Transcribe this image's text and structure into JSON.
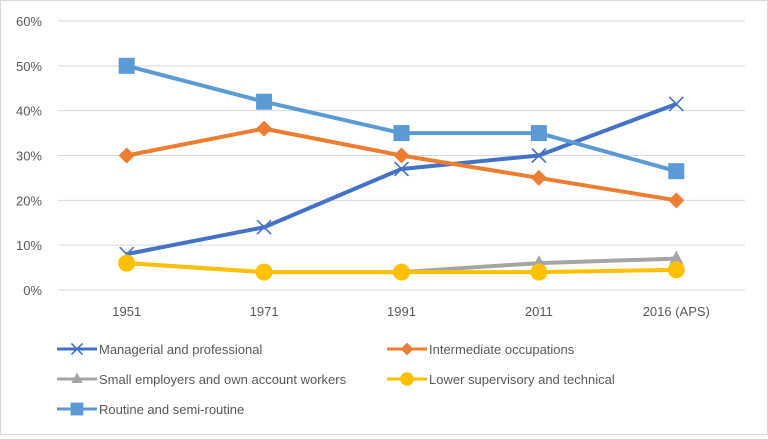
{
  "chart_data": {
    "type": "line",
    "title": "",
    "xlabel": "",
    "ylabel": "",
    "categories": [
      "1951",
      "1971",
      "1991",
      "2011",
      "2016 (APS)"
    ],
    "ylim": [
      0,
      60
    ],
    "yticks": [
      "0%",
      "10%",
      "20%",
      "30%",
      "40%",
      "50%",
      "60%"
    ],
    "grid": true,
    "legend_position": "bottom",
    "series": [
      {
        "name": "Managerial and professional",
        "values": [
          8,
          14,
          27,
          30,
          41.5
        ],
        "color": "#4472C4",
        "marker": "x"
      },
      {
        "name": "Intermediate occupations",
        "values": [
          30,
          36,
          30,
          25,
          20
        ],
        "color": "#ED7D31",
        "marker": "diamond"
      },
      {
        "name": "Small employers and own account workers",
        "values": [
          6,
          4,
          4,
          6,
          7
        ],
        "color": "#A5A5A5",
        "marker": "triangle"
      },
      {
        "name": "Lower supervisory and technical",
        "values": [
          6,
          4,
          4,
          4,
          4.5
        ],
        "color": "#FFC000",
        "marker": "circle"
      },
      {
        "name": "Routine and semi-routine",
        "values": [
          50,
          42,
          35,
          35,
          26.5
        ],
        "color": "#5B9BD5",
        "marker": "square"
      }
    ]
  }
}
